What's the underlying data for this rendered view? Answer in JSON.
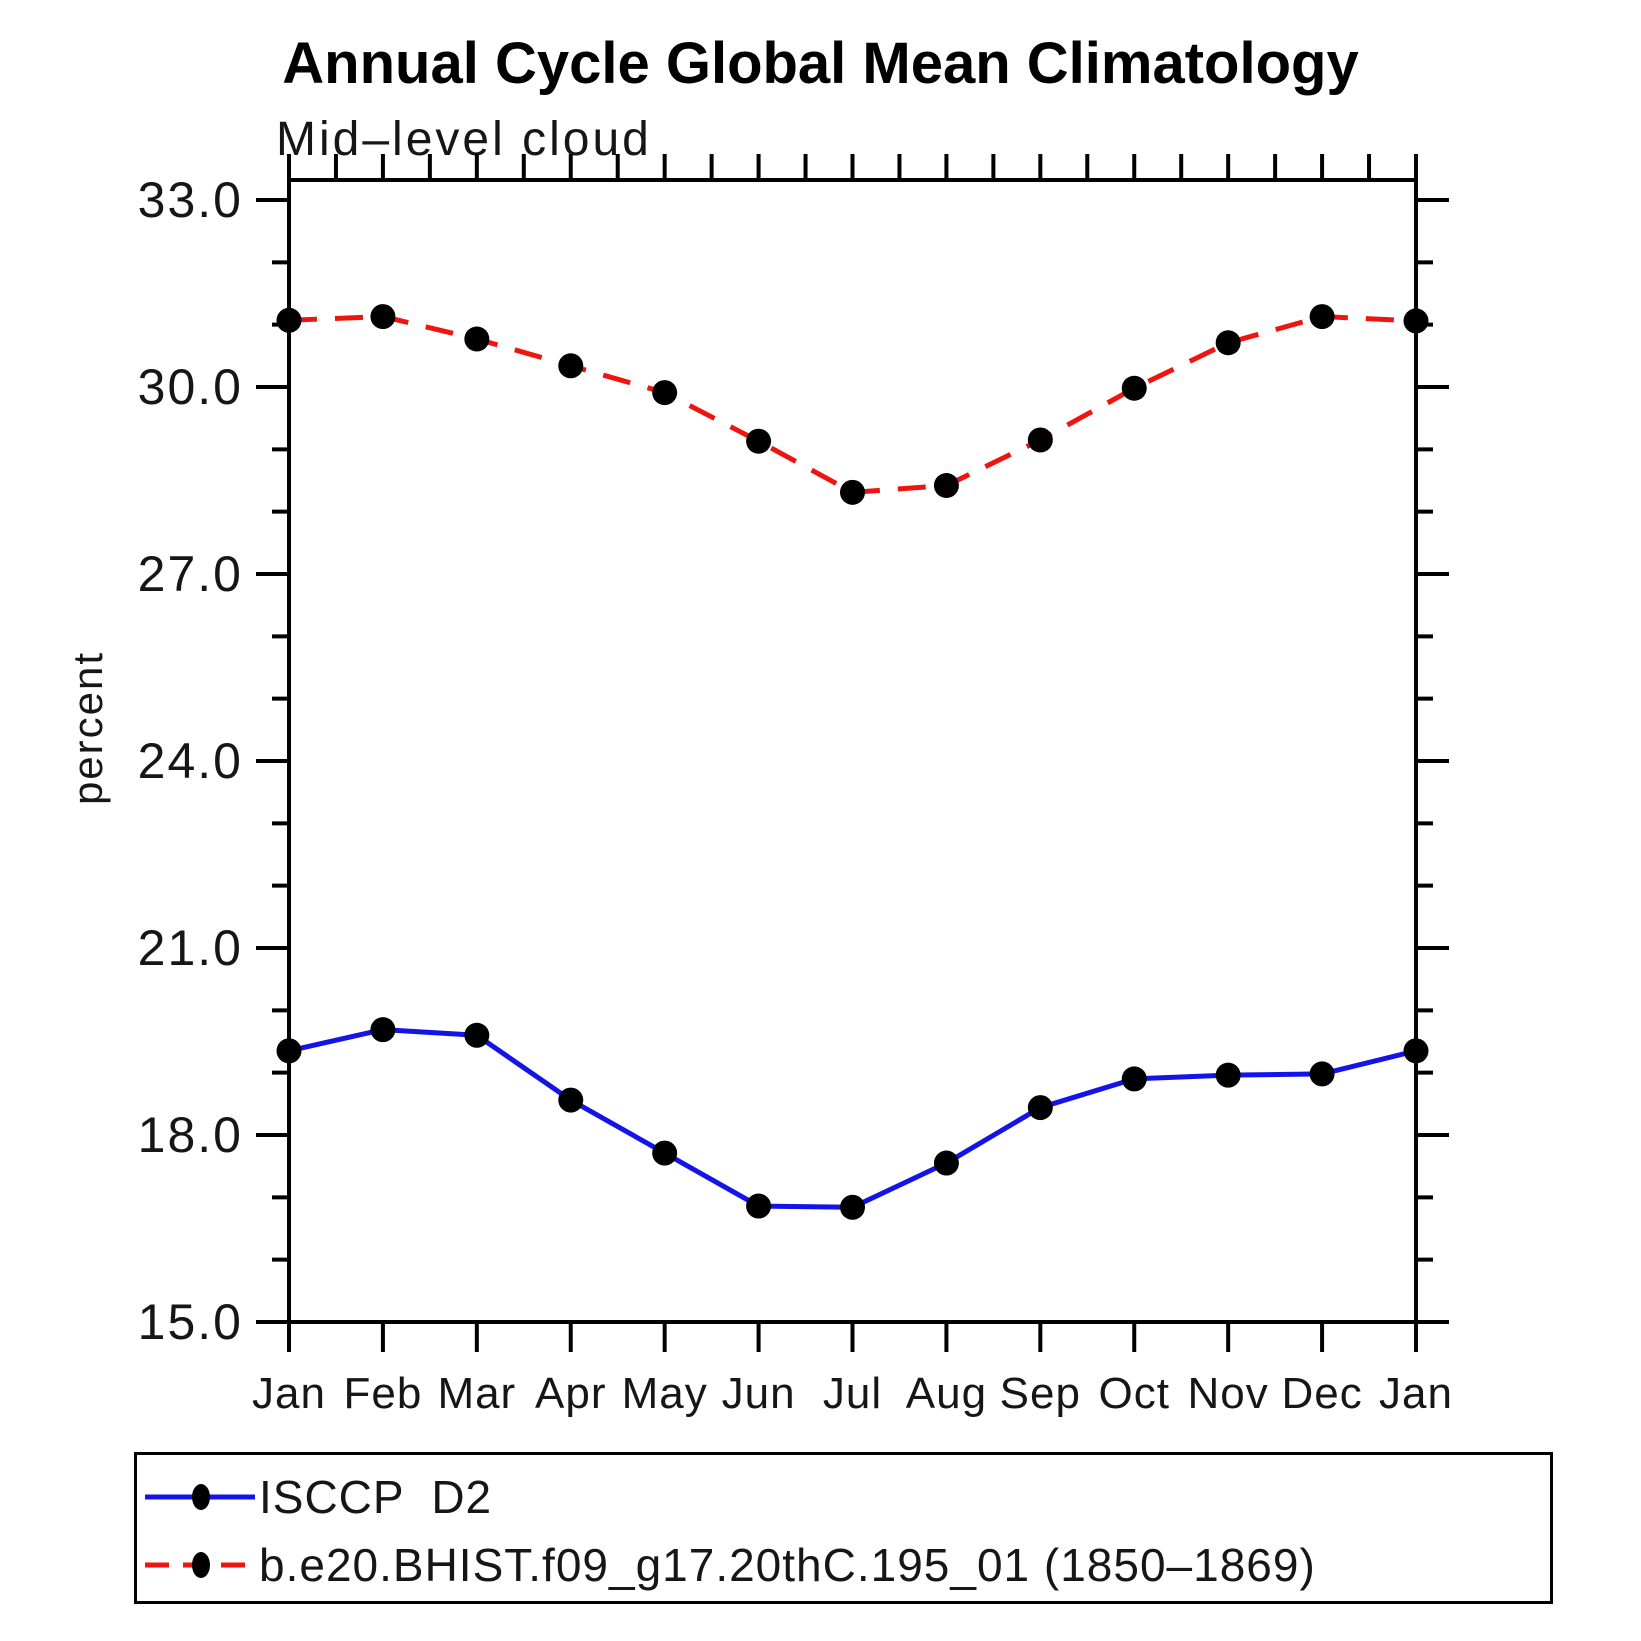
{
  "title": "Annual Cycle Global Mean Climatology",
  "subtitle": "Mid–level cloud",
  "y_axis_label": "percent",
  "chart_data": {
    "type": "line",
    "title": "Annual Cycle Global Mean Climatology",
    "subtitle": "Mid–level cloud",
    "xlabel": "",
    "ylabel": "percent",
    "ylim": [
      15.0,
      33.0
    ],
    "ytick_major_step": 3.0,
    "ytick_minor_step": 1.0,
    "ytick_labels": [
      "33.0",
      "30.0",
      "27.0",
      "24.0",
      "21.0",
      "18.0",
      "15.0"
    ],
    "categories": [
      "Jan",
      "Feb",
      "Mar",
      "Apr",
      "May",
      "Jun",
      "Jul",
      "Aug",
      "Sep",
      "Oct",
      "Nov",
      "Dec",
      "Jan"
    ],
    "grid": false,
    "legend_position": "bottom-left-box",
    "series": [
      {
        "name": "ISCCP  D2",
        "line_style": "solid",
        "line_color": "#1414e8",
        "marker": "filled-circle",
        "marker_color": "#000000",
        "values": [
          19.35,
          19.69,
          19.6,
          18.56,
          17.71,
          16.86,
          16.84,
          17.55,
          18.44,
          18.9,
          18.96,
          18.98,
          19.35
        ]
      },
      {
        "name": "b.e20.BHIST.f09_g17.20thC.195_01 (1850–1869)",
        "line_style": "dashed",
        "line_color": "#ee1511",
        "marker": "filled-circle",
        "marker_color": "#000000",
        "values": [
          31.07,
          31.13,
          30.77,
          30.34,
          29.91,
          29.13,
          28.31,
          28.42,
          29.15,
          29.98,
          30.71,
          31.13,
          31.06
        ]
      }
    ]
  }
}
